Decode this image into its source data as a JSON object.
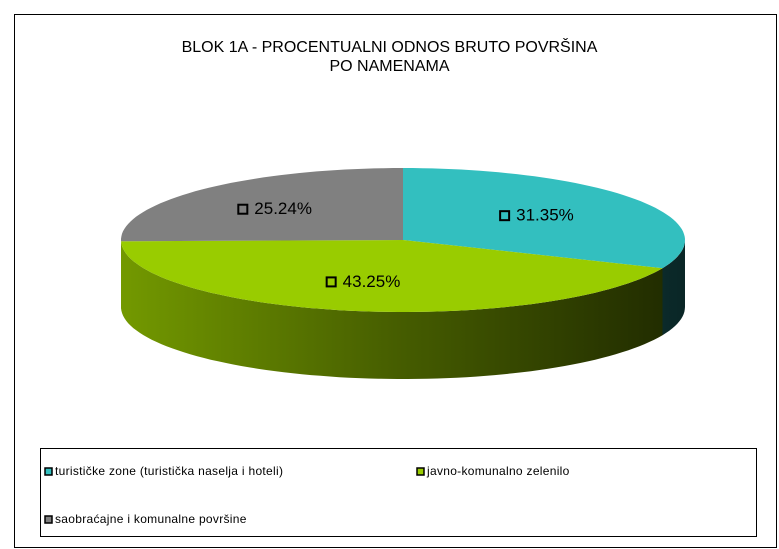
{
  "chart_data": {
    "type": "pie3d",
    "title": "BLOK 1A - PROCENTUALNI ODNOS BRUTO POVRŠINA\nPO NAMENAMA",
    "categories": [
      "turističke zone (turistička naselja i hoteli)",
      "javno-komunalno zelenilo",
      "saobraćajne i komunalne površine"
    ],
    "values": [
      31.35,
      43.25,
      25.24
    ],
    "value_labels": [
      "31.35%",
      "43.25%",
      "25.24%"
    ],
    "colors": [
      "#33bfbf",
      "#99cc00",
      "#808080"
    ],
    "legend": "bottom"
  }
}
